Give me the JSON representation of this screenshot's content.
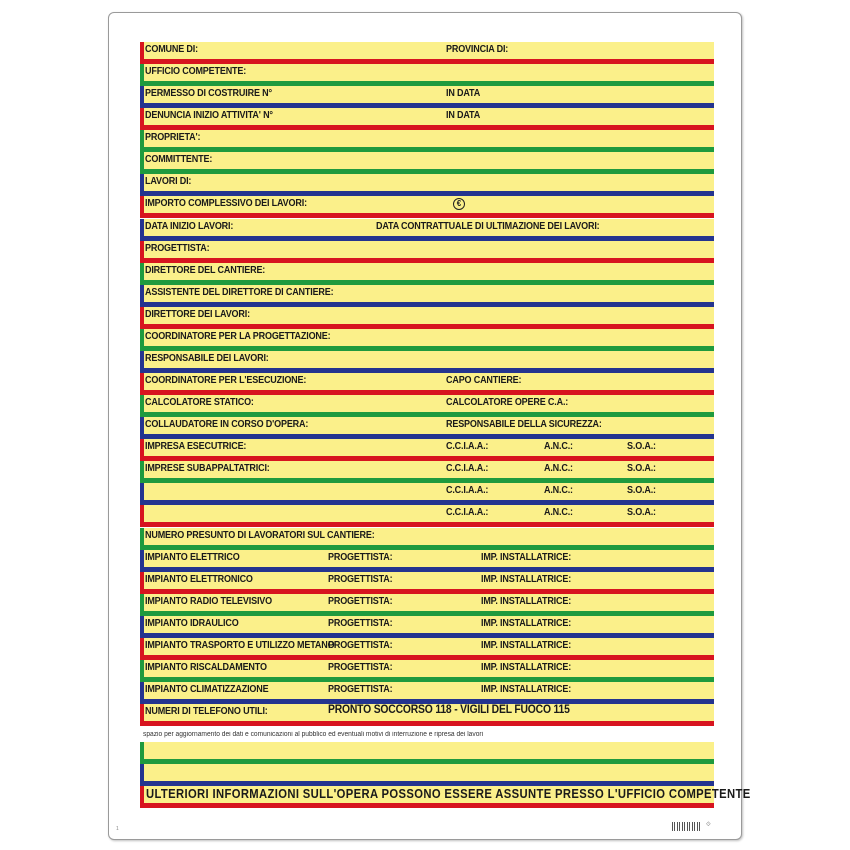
{
  "colors": {
    "yellow": "#fbf08a",
    "red": "#d7141f",
    "green": "#1f9a3e",
    "blue": "#24348f"
  },
  "rows": [
    {
      "c": "red",
      "texts": [
        {
          "x": 5,
          "v": "COMUNE DI:"
        },
        {
          "x": 306,
          "v": "PROVINCIA DI:"
        }
      ]
    },
    {
      "c": "green",
      "texts": [
        {
          "x": 5,
          "v": "UFFICIO COMPETENTE:"
        }
      ]
    },
    {
      "c": "blue",
      "texts": [
        {
          "x": 5,
          "v": "PERMESSO DI COSTRUIRE N°"
        },
        {
          "x": 306,
          "v": "IN DATA"
        }
      ]
    },
    {
      "c": "red",
      "texts": [
        {
          "x": 5,
          "v": "DENUNCIA INIZIO ATTIVITA' N°"
        },
        {
          "x": 306,
          "v": "IN DATA"
        }
      ]
    },
    {
      "c": "green",
      "texts": [
        {
          "x": 5,
          "v": "PROPRIETA':"
        }
      ]
    },
    {
      "c": "green",
      "texts": [
        {
          "x": 5,
          "v": "COMMITTENTE:"
        }
      ]
    },
    {
      "c": "blue",
      "texts": [
        {
          "x": 5,
          "v": "LAVORI DI:"
        }
      ]
    },
    {
      "c": "red",
      "texts": [
        {
          "x": 5,
          "v": "IMPORTO COMPLESSIVO DEI LAVORI:"
        }
      ],
      "euro": true
    },
    {
      "c": "blue",
      "texts": [
        {
          "x": 5,
          "v": "DATA INIZIO LAVORI:"
        },
        {
          "x": 236,
          "v": "DATA CONTRATTUALE DI ULTIMAZIONE DEI LAVORI:"
        }
      ]
    },
    {
      "c": "red",
      "texts": [
        {
          "x": 5,
          "v": "PROGETTISTA:"
        }
      ]
    },
    {
      "c": "green",
      "texts": [
        {
          "x": 5,
          "v": "DIRETTORE DEL CANTIERE:"
        }
      ]
    },
    {
      "c": "blue",
      "texts": [
        {
          "x": 5,
          "v": "ASSISTENTE DEL DIRETTORE DI CANTIERE:"
        }
      ]
    },
    {
      "c": "red",
      "texts": [
        {
          "x": 5,
          "v": "DIRETTORE DEI LAVORI:"
        }
      ]
    },
    {
      "c": "green",
      "texts": [
        {
          "x": 5,
          "v": "COORDINATORE PER LA PROGETTAZIONE:"
        }
      ]
    },
    {
      "c": "blue",
      "texts": [
        {
          "x": 5,
          "v": "RESPONSABILE DEI LAVORI:"
        }
      ]
    },
    {
      "c": "red",
      "texts": [
        {
          "x": 5,
          "v": "COORDINATORE PER L'ESECUZIONE:"
        },
        {
          "x": 306,
          "v": "CAPO CANTIERE:"
        }
      ]
    },
    {
      "c": "green",
      "texts": [
        {
          "x": 5,
          "v": "CALCOLATORE STATICO:"
        },
        {
          "x": 306,
          "v": "CALCOLATORE OPERE C.A.:"
        }
      ]
    },
    {
      "c": "blue",
      "texts": [
        {
          "x": 5,
          "v": "COLLAUDATORE IN CORSO D'OPERA:"
        },
        {
          "x": 306,
          "v": "RESPONSABILE DELLA SICUREZZA:"
        }
      ]
    },
    {
      "c": "red",
      "texts": [
        {
          "x": 5,
          "v": "IMPRESA ESECUTRICE:"
        },
        {
          "x": 306,
          "v": "C.C.I.A.A.:"
        },
        {
          "x": 404,
          "v": "A.N.C.:"
        },
        {
          "x": 487,
          "v": "S.O.A.:"
        }
      ]
    },
    {
      "c": "green",
      "texts": [
        {
          "x": 5,
          "v": "IMPRESE SUBAPPALTATRICI:"
        },
        {
          "x": 306,
          "v": "C.C.I.A.A.:"
        },
        {
          "x": 404,
          "v": "A.N.C.:"
        },
        {
          "x": 487,
          "v": "S.O.A.:"
        }
      ]
    },
    {
      "c": "blue",
      "texts": [
        {
          "x": 306,
          "v": "C.C.I.A.A.:"
        },
        {
          "x": 404,
          "v": "A.N.C.:"
        },
        {
          "x": 487,
          "v": "S.O.A.:"
        }
      ]
    },
    {
      "c": "red",
      "texts": [
        {
          "x": 306,
          "v": "C.C.I.A.A.:"
        },
        {
          "x": 404,
          "v": "A.N.C.:"
        },
        {
          "x": 487,
          "v": "S.O.A.:"
        }
      ]
    },
    {
      "c": "green",
      "texts": [
        {
          "x": 5,
          "v": "NUMERO PRESUNTO DI LAVORATORI SUL CANTIERE:"
        }
      ]
    },
    {
      "c": "blue",
      "texts": [
        {
          "x": 5,
          "v": "IMPIANTO ELETTRICO"
        },
        {
          "x": 188,
          "v": "PROGETTISTA:"
        },
        {
          "x": 341,
          "v": "IMP. INSTALLATRICE:"
        }
      ]
    },
    {
      "c": "red",
      "texts": [
        {
          "x": 5,
          "v": "IMPIANTO ELETTRONICO"
        },
        {
          "x": 188,
          "v": "PROGETTISTA:"
        },
        {
          "x": 341,
          "v": "IMP. INSTALLATRICE:"
        }
      ]
    },
    {
      "c": "green",
      "texts": [
        {
          "x": 5,
          "v": "IMPIANTO RADIO TELEVISIVO"
        },
        {
          "x": 188,
          "v": "PROGETTISTA:"
        },
        {
          "x": 341,
          "v": "IMP. INSTALLATRICE:"
        }
      ]
    },
    {
      "c": "blue",
      "texts": [
        {
          "x": 5,
          "v": "IMPIANTO IDRAULICO"
        },
        {
          "x": 188,
          "v": "PROGETTISTA:"
        },
        {
          "x": 341,
          "v": "IMP. INSTALLATRICE:"
        }
      ]
    },
    {
      "c": "red",
      "texts": [
        {
          "x": 5,
          "v": "IMPIANTO TRASPORTO E UTILIZZO METANO"
        },
        {
          "x": 188,
          "v": "PROGETTISTA:"
        },
        {
          "x": 341,
          "v": "IMP. INSTALLATRICE:"
        }
      ]
    },
    {
      "c": "green",
      "texts": [
        {
          "x": 5,
          "v": "IMPIANTO RISCALDAMENTO"
        },
        {
          "x": 188,
          "v": "PROGETTISTA:"
        },
        {
          "x": 341,
          "v": "IMP. INSTALLATRICE:"
        }
      ]
    },
    {
      "c": "blue",
      "texts": [
        {
          "x": 5,
          "v": "IMPIANTO CLIMATIZZAZIONE"
        },
        {
          "x": 188,
          "v": "PROGETTISTA:"
        },
        {
          "x": 341,
          "v": "IMP. INSTALLATRICE:"
        }
      ]
    },
    {
      "c": "red",
      "texts": [
        {
          "x": 5,
          "v": "NUMERI DI TELEFONO UTILI:"
        },
        {
          "x": 188,
          "v": "PRONTO SOCCORSO 118 - VIGILI DEL FUOCO 115",
          "big": true
        }
      ]
    }
  ],
  "note": "spazio per aggiornamento dei dati e comunicazioni al pubblico ed eventuali motivi di interruzione e ripresa dei lavori",
  "blank_rows": [
    "green",
    "blue"
  ],
  "footer": "ULTERIORI INFORMAZIONI SULL'OPERA POSSONO ESSERE ASSUNTE PRESSO L'UFFICIO COMPETENTE",
  "code": "⟐",
  "pagemark": "1"
}
